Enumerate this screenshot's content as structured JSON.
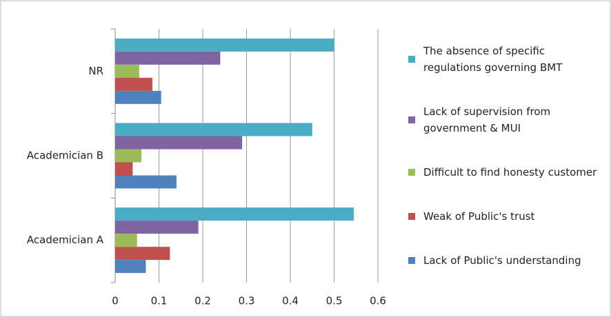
{
  "chart_data": {
    "type": "hbar",
    "categories": [
      "NR",
      "Academician B",
      "Academician A"
    ],
    "series": [
      {
        "name": "The absence of specific regulations governing BMT",
        "color": "#4bacc6",
        "values": [
          0.5,
          0.45,
          0.545
        ]
      },
      {
        "name": "Lack of supervision from government & MUI",
        "color": "#8064a2",
        "values": [
          0.24,
          0.29,
          0.19
        ]
      },
      {
        "name": "Difficult to find honesty customer",
        "color": "#9bbb59",
        "values": [
          0.055,
          0.06,
          0.05
        ]
      },
      {
        "name": "Weak of Public's trust",
        "color": "#c0504d",
        "values": [
          0.085,
          0.04,
          0.125
        ]
      },
      {
        "name": "Lack of Public's understanding",
        "color": "#4f81bd",
        "values": [
          0.105,
          0.14,
          0.07
        ]
      }
    ],
    "xlim": [
      0,
      0.6
    ],
    "xticks": [
      0,
      0.1,
      0.2,
      0.3,
      0.4,
      0.5,
      0.6
    ],
    "grid": true,
    "legend": "right"
  }
}
